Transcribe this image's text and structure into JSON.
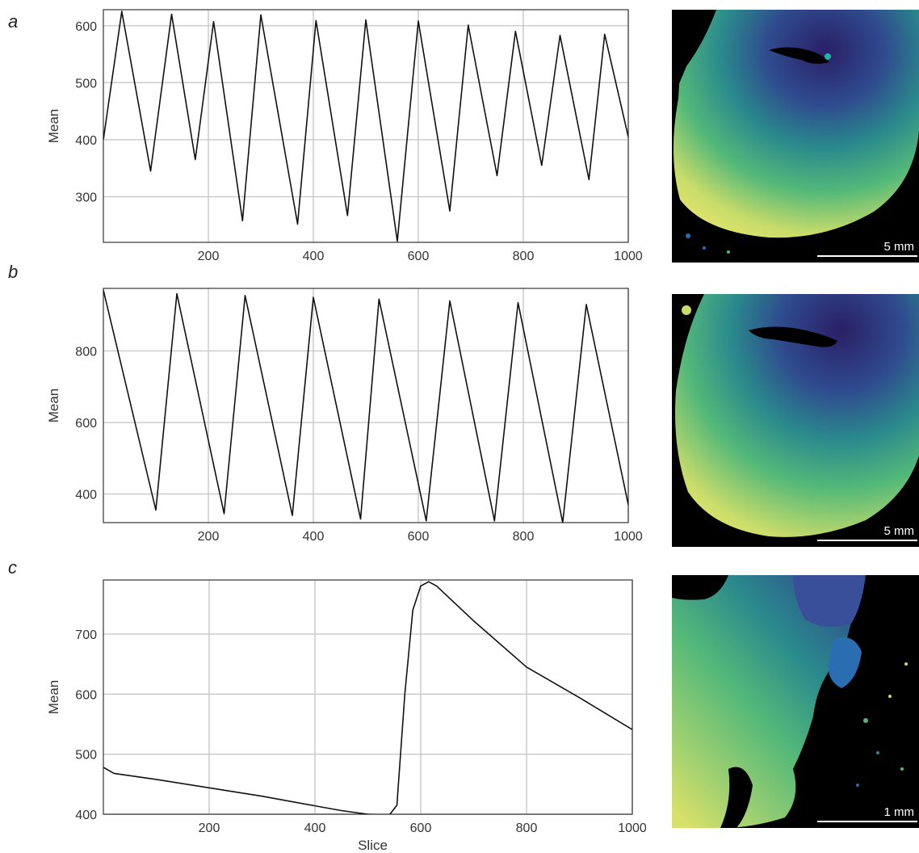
{
  "panels": [
    {
      "letter": "a",
      "scalebar_label": "5 mm"
    },
    {
      "letter": "b",
      "scalebar_label": "5 mm"
    },
    {
      "letter": "c",
      "scalebar_label": "1 mm"
    }
  ],
  "colors": {
    "line": "#111111",
    "grid": "#c8c8c8",
    "frame": "#333333",
    "map_background": "#000000"
  },
  "chart_data": [
    {
      "type": "line",
      "panel": "a",
      "xlabel": "",
      "ylabel": "Mean",
      "xlim": [
        0,
        1000
      ],
      "ylim": [
        220,
        628
      ],
      "xticks": [
        200,
        400,
        600,
        800,
        1000
      ],
      "yticks": [
        300,
        400,
        500,
        600
      ],
      "grid": true,
      "series": [
        {
          "x": [
            0,
            35,
            90,
            130,
            175,
            210,
            265,
            300,
            370,
            405,
            465,
            500,
            560,
            600,
            660,
            695,
            750,
            785,
            835,
            870,
            925,
            955,
            1000
          ],
          "y": [
            400,
            625,
            345,
            620,
            365,
            607,
            258,
            619,
            252,
            609,
            267,
            610,
            222,
            608,
            275,
            601,
            337,
            590,
            355,
            583,
            330,
            585,
            405
          ]
        }
      ]
    },
    {
      "type": "line",
      "panel": "b",
      "xlabel": "",
      "ylabel": "Mean",
      "xlim": [
        0,
        1000
      ],
      "ylim": [
        320,
        975
      ],
      "xticks": [
        200,
        400,
        600,
        800,
        1000
      ],
      "yticks": [
        400,
        600,
        800
      ],
      "grid": true,
      "series": [
        {
          "x": [
            0,
            100,
            140,
            230,
            270,
            360,
            400,
            490,
            525,
            615,
            660,
            745,
            790,
            875,
            920,
            1000
          ],
          "y": [
            970,
            355,
            960,
            345,
            955,
            340,
            950,
            330,
            945,
            325,
            940,
            325,
            935,
            320,
            930,
            370
          ]
        }
      ]
    },
    {
      "type": "line",
      "panel": "c",
      "xlabel": "Slice",
      "ylabel": "Mean",
      "xlim": [
        0,
        1000
      ],
      "ylim": [
        400,
        790
      ],
      "xticks": [
        200,
        400,
        600,
        800,
        1000
      ],
      "yticks": [
        400,
        500,
        600,
        700
      ],
      "grid": true,
      "series": [
        {
          "x": [
            0,
            20,
            100,
            200,
            300,
            400,
            450,
            500,
            540,
            555,
            570,
            585,
            600,
            615,
            630,
            700,
            800,
            900,
            1000
          ],
          "y": [
            478,
            468,
            458,
            444,
            430,
            414,
            406,
            400,
            398,
            415,
            600,
            740,
            780,
            787,
            780,
            722,
            645,
            594,
            541
          ]
        }
      ]
    }
  ]
}
